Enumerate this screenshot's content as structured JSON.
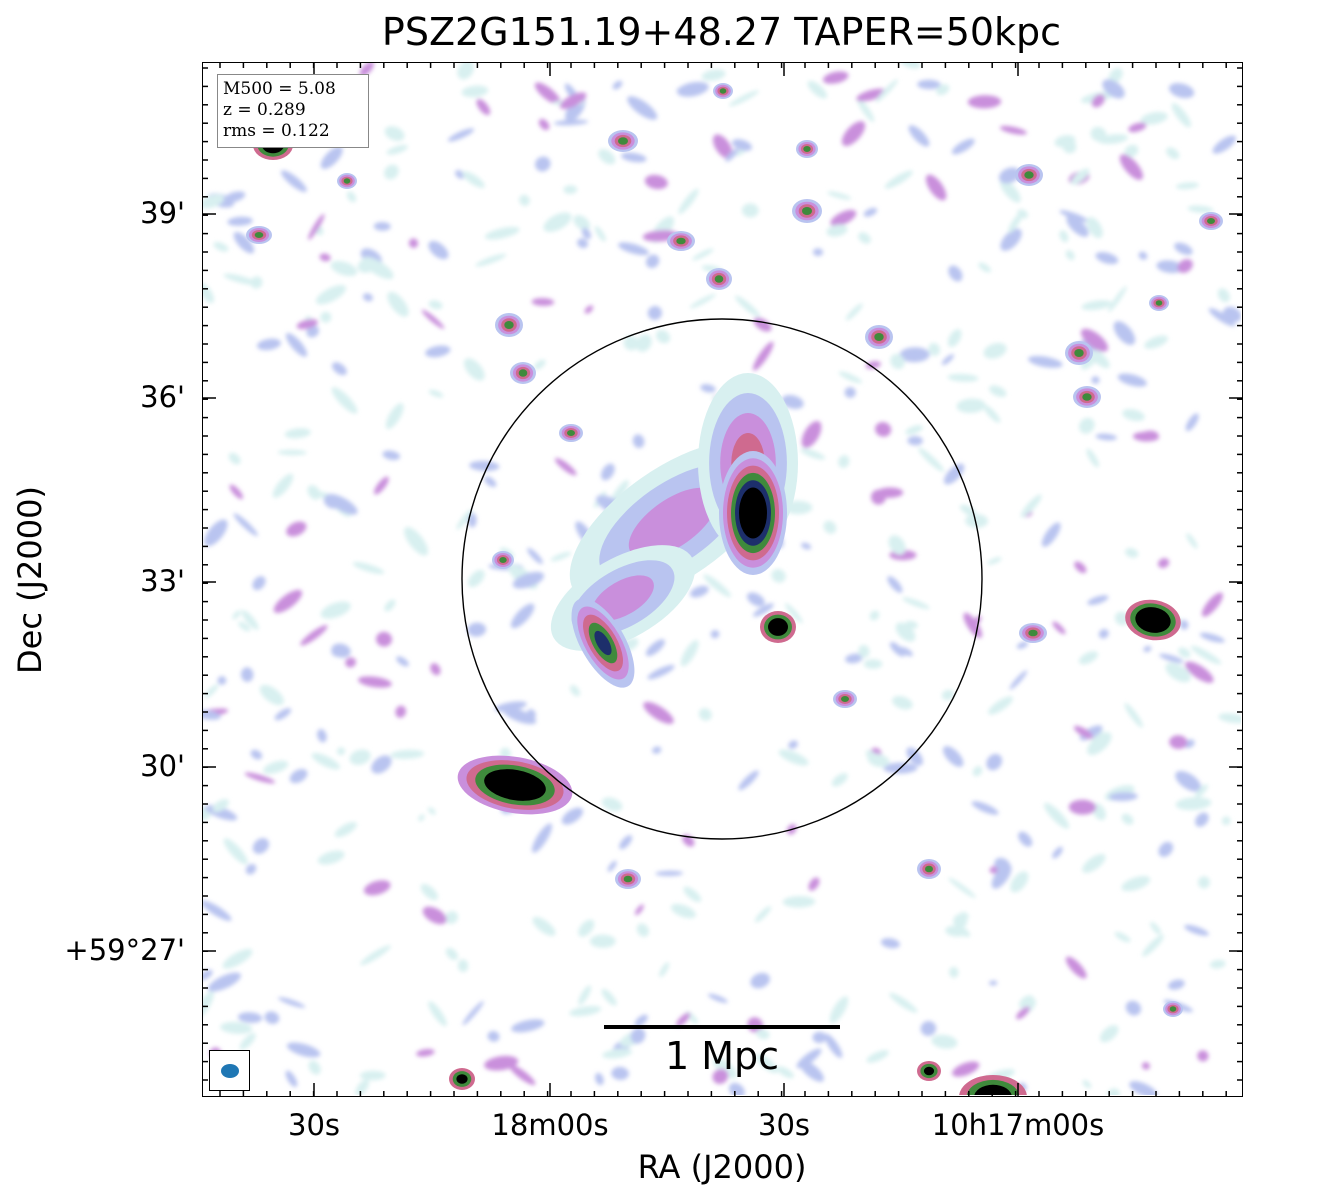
{
  "title": "PSZ2G151.19+48.27 TAPER=50kpc",
  "info": {
    "mass": "M500 = 5.08",
    "redshift": "z = 0.289",
    "rms": "rms = 0.122"
  },
  "axes": {
    "xlabel": "RA (J2000)",
    "ylabel": "Dec (J2000)",
    "x_ticks": [
      "30s",
      "18m00s",
      "30s",
      "10h17m00s"
    ],
    "y_ticks": [
      "39'",
      "36'",
      "33'",
      "30'",
      "+59°27'"
    ]
  },
  "scalebar": {
    "label": "1 Mpc"
  },
  "beam": {
    "color": "#1f77b4"
  },
  "colormap": [
    "#d8f0f0",
    "#b9c4f0",
    "#c98fdc",
    "#cf6a8f",
    "#3f8a3c",
    "#1d2f6b",
    "#000000"
  ]
}
